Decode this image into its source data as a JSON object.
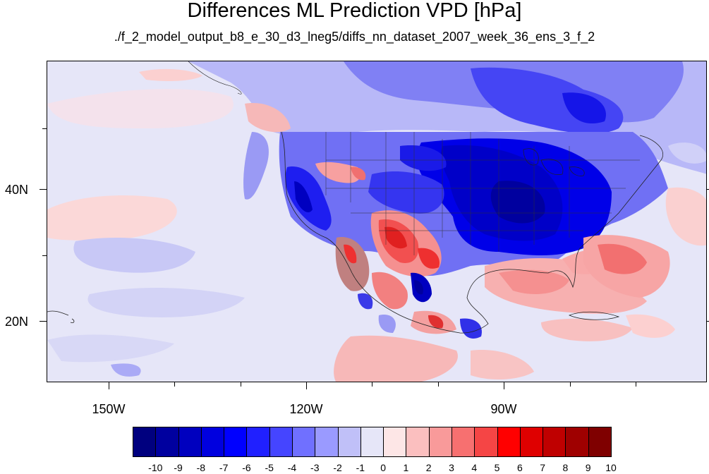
{
  "title": "Differences ML Prediction VPD [hPa]",
  "subtitle": "./f_2_model_output_b8_e_30_d3_lneg5/diffs_nn_dataset_2007_week_36_ens_3_f_2",
  "map": {
    "lat_labels": [
      "40N",
      "20N"
    ],
    "lon_labels": [
      "150W",
      "120W",
      "90W"
    ],
    "ocean_color": "#e6e6f8"
  },
  "colorbar": {
    "labels": [
      "-10",
      "-9",
      "-8",
      "-7",
      "-6",
      "-5",
      "-4",
      "-3",
      "-2",
      "-1",
      "0",
      "1",
      "2",
      "3",
      "4",
      "5",
      "6",
      "7",
      "8",
      "9",
      "10"
    ],
    "colors": [
      "#00007f",
      "#00009f",
      "#0000bf",
      "#0000df",
      "#0000ff",
      "#2020ff",
      "#4545ff",
      "#7070ff",
      "#9a9aff",
      "#c0c0f8",
      "#e6e6f8",
      "#fde6e6",
      "#fbbfbf",
      "#f99a9a",
      "#f77070",
      "#f54545",
      "#ff0000",
      "#df0000",
      "#bf0000",
      "#9f0000",
      "#7f0000"
    ]
  }
}
